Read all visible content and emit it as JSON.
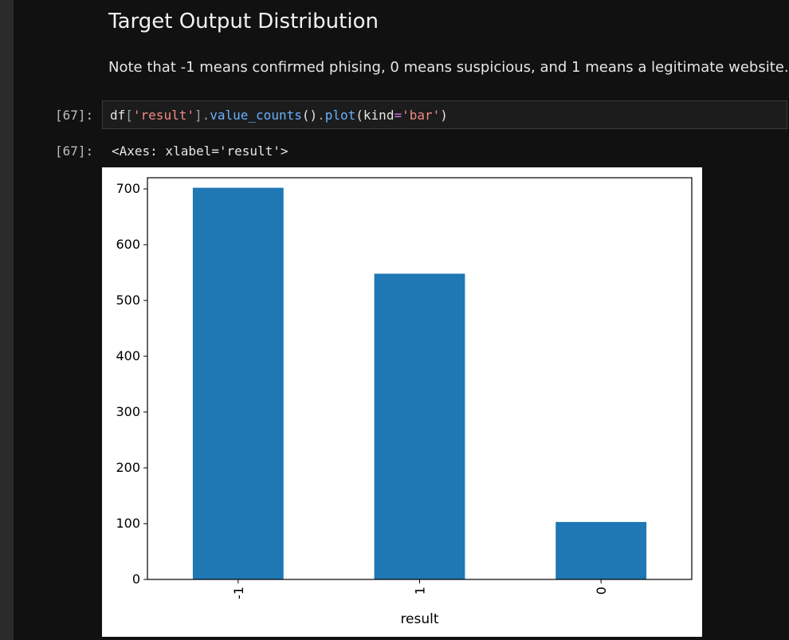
{
  "notebook": {
    "heading": "Target Output Distribution",
    "note": "Note that -1 means confirmed phising, 0 means suspicious, and 1 means a legitimate website.",
    "cells": [
      {
        "input_prompt": "[67]:",
        "code_tokens": [
          {
            "text": "df",
            "kind": "var"
          },
          {
            "text": "[",
            "kind": "punct"
          },
          {
            "text": "'result'",
            "kind": "str"
          },
          {
            "text": "]",
            "kind": "punct"
          },
          {
            "text": ".",
            "kind": "punct"
          },
          {
            "text": "value_counts",
            "kind": "fn"
          },
          {
            "text": "()",
            "kind": "var"
          },
          {
            "text": ".",
            "kind": "punct"
          },
          {
            "text": "plot",
            "kind": "fn"
          },
          {
            "text": "(kind",
            "kind": "var"
          },
          {
            "text": "=",
            "kind": "op"
          },
          {
            "text": "'bar'",
            "kind": "str"
          },
          {
            "text": ")",
            "kind": "var"
          }
        ],
        "output_prompt": "[67]:",
        "output_text": "<Axes: xlabel='result'>"
      }
    ]
  },
  "colors": {
    "background": "#111111",
    "bar": "#1f77b4",
    "string": "#f28b82",
    "function": "#6ab0ff",
    "operator": "#c678dd"
  },
  "chart_data": {
    "type": "bar",
    "categories": [
      "-1",
      "1",
      "0"
    ],
    "values": [
      702,
      548,
      103
    ],
    "title": "",
    "xlabel": "result",
    "ylabel": "",
    "ylim": [
      0,
      720
    ],
    "yticks": [
      0,
      100,
      200,
      300,
      400,
      500,
      600,
      700
    ],
    "grid": false,
    "xtick_rotation": 90
  }
}
